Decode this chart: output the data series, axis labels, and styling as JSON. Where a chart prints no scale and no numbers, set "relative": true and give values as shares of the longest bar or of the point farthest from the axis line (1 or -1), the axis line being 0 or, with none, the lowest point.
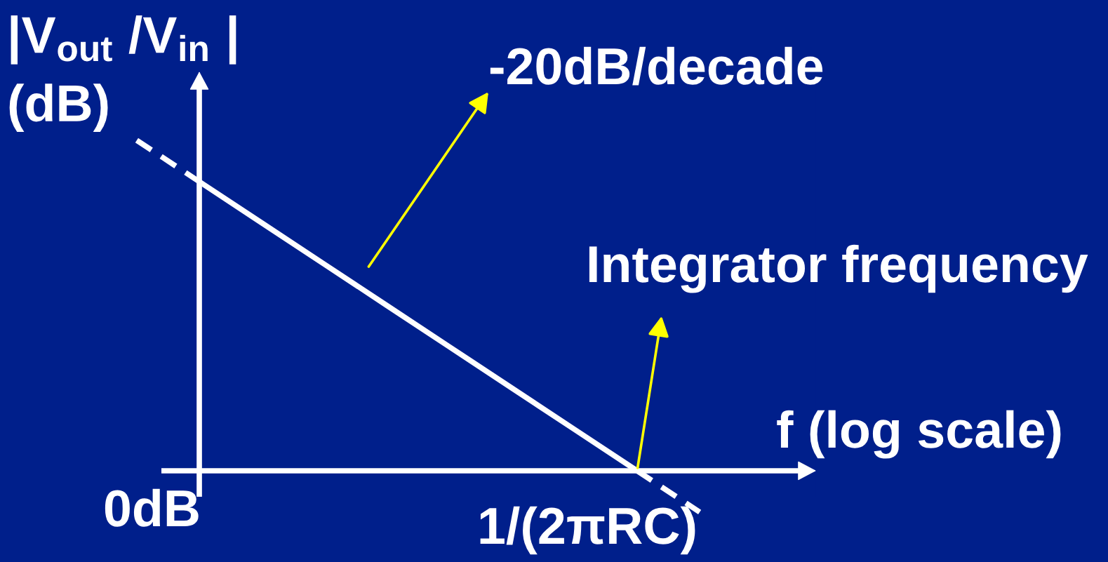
{
  "chart_data": {
    "type": "line",
    "relative": true,
    "xlabel": "f (log scale)",
    "ylabel": "|V$_{out}$ /V$_{in}$ |\n(dB)",
    "categories": [
      null,
      null,
      null,
      null,
      null,
      null,
      null,
      null,
      null,
      null
    ],
    "series": [
      {
        "color": "#ffffff",
        "line_style": "dashed",
        "values": [
          1,
          0.875,
          null,
          null,
          null,
          null,
          null,
          null,
          null,
          null
        ]
      },
      {
        "color": "#ffffff",
        "line_style": "solid",
        "values": [
          null,
          0.875,
          0.75,
          0.625,
          0.5,
          0.375,
          0.25,
          0.125,
          0,
          null
        ]
      },
      {
        "color": "#ffffff",
        "line_style": "dashed",
        "values": [
          null,
          null,
          null,
          null,
          null,
          null,
          null,
          null,
          0,
          -0.125
        ]
      }
    ],
    "annotations": [
      "-20dB/decade",
      "Integrator frequency",
      "0dB",
      "1/(2πRC)"
    ]
  }
}
